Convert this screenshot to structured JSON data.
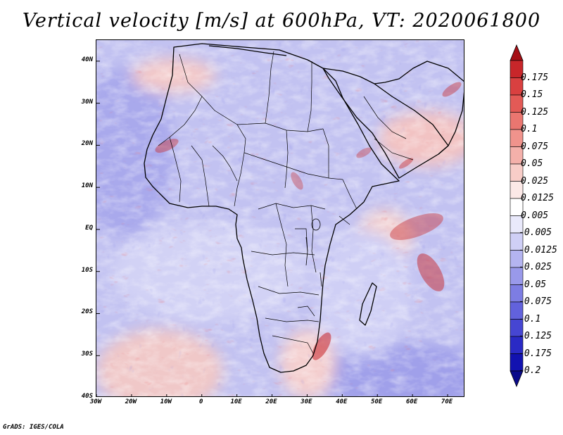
{
  "title": "Vertical velocity [m/s] at 600hPa, VT: 2020061800",
  "credit": "GrADS: IGES/COLA",
  "map": {
    "lon_ticks": [
      "30W",
      "20W",
      "10W",
      "0",
      "10E",
      "20E",
      "30E",
      "40E",
      "50E",
      "60E",
      "70E"
    ],
    "lat_ticks": [
      "40N",
      "30N",
      "20N",
      "10N",
      "EQ",
      "10S",
      "20S",
      "30S",
      "40S"
    ],
    "lon_range": [
      -30,
      75
    ],
    "lat_range": [
      -40,
      45
    ]
  },
  "colorbar": {
    "labels": [
      "0.175",
      "0.15",
      "0.125",
      "0.1",
      "0.075",
      "0.05",
      "0.025",
      "0.0125",
      "0.005",
      "-0.005",
      "-0.0125",
      "-0.025",
      "-0.05",
      "-0.075",
      "-0.1",
      "-0.125",
      "-0.175",
      "-0.2"
    ],
    "colors": [
      "#a50f15",
      "#c8262a",
      "#d94040",
      "#e35a56",
      "#ea7670",
      "#f0938c",
      "#f4b0aa",
      "#f8cdc8",
      "#fce9e7",
      "#ffffff",
      "#e9e9fb",
      "#cfcff6",
      "#b4b4f0",
      "#9999ea",
      "#7d7de3",
      "#6262dc",
      "#4646d2",
      "#2a2ac5",
      "#1212b0",
      "#0a0a8a"
    ]
  }
}
